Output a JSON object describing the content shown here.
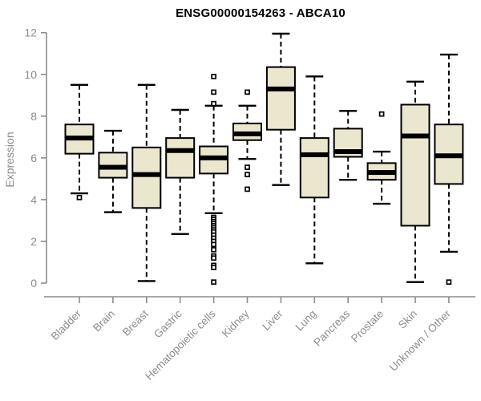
{
  "chart_data": {
    "type": "boxplot",
    "title": "ENSG00000154263 - ABCA10",
    "xlabel": "",
    "ylabel": "Expression",
    "ylim": [
      0,
      12
    ],
    "yticks": [
      0,
      2,
      4,
      6,
      8,
      10,
      12
    ],
    "grid": false,
    "legend": "none",
    "categories": [
      "Bladder",
      "Brain",
      "Breast",
      "Gastric",
      "Hematopoietic cells",
      "Kidney",
      "Liver",
      "Lung",
      "Pancreas",
      "Prostate",
      "Skin",
      "Unknown / Other"
    ],
    "boxes": [
      {
        "label": "Bladder",
        "whisker_low": 4.3,
        "q1": 6.2,
        "median": 6.95,
        "q3": 7.6,
        "whisker_high": 9.5,
        "outliers": [
          4.1
        ]
      },
      {
        "label": "Brain",
        "whisker_low": 3.4,
        "q1": 5.05,
        "median": 5.55,
        "q3": 6.25,
        "whisker_high": 7.3,
        "outliers": []
      },
      {
        "label": "Breast",
        "whisker_low": 0.1,
        "q1": 3.6,
        "median": 5.2,
        "q3": 6.5,
        "whisker_high": 9.5,
        "outliers": []
      },
      {
        "label": "Gastric",
        "whisker_low": 2.35,
        "q1": 5.05,
        "median": 6.35,
        "q3": 6.95,
        "whisker_high": 8.3,
        "outliers": []
      },
      {
        "label": "Hematopoietic cells",
        "whisker_low": 3.35,
        "q1": 5.25,
        "median": 6.0,
        "q3": 6.55,
        "whisker_high": 8.5,
        "outliers": [
          9.9,
          9.15,
          8.6,
          3.15,
          3.05,
          2.95,
          2.85,
          2.75,
          2.65,
          2.55,
          2.45,
          2.3,
          2.15,
          2.0,
          1.85,
          1.6,
          1.3,
          1.2,
          0.85,
          0.75,
          0.05
        ]
      },
      {
        "label": "Kidney",
        "whisker_low": 5.95,
        "q1": 6.85,
        "median": 7.15,
        "q3": 7.65,
        "whisker_high": 8.5,
        "outliers": [
          9.15,
          5.55,
          5.2,
          4.5
        ]
      },
      {
        "label": "Liver",
        "whisker_low": 4.7,
        "q1": 7.35,
        "median": 9.3,
        "q3": 10.35,
        "whisker_high": 11.95,
        "outliers": []
      },
      {
        "label": "Lung",
        "whisker_low": 0.95,
        "q1": 4.1,
        "median": 6.15,
        "q3": 6.95,
        "whisker_high": 9.9,
        "outliers": []
      },
      {
        "label": "Pancreas",
        "whisker_low": 4.95,
        "q1": 6.05,
        "median": 6.3,
        "q3": 7.4,
        "whisker_high": 8.25,
        "outliers": []
      },
      {
        "label": "Prostate",
        "whisker_low": 3.8,
        "q1": 4.95,
        "median": 5.3,
        "q3": 5.75,
        "whisker_high": 6.3,
        "outliers": [
          8.1
        ]
      },
      {
        "label": "Skin",
        "whisker_low": 0.05,
        "q1": 2.75,
        "median": 7.05,
        "q3": 8.55,
        "whisker_high": 9.65,
        "outliers": []
      },
      {
        "label": "Unknown / Other",
        "whisker_low": 1.5,
        "q1": 4.75,
        "median": 6.1,
        "q3": 7.6,
        "whisker_high": 10.95,
        "outliers": [
          0.05
        ]
      }
    ],
    "colors": {
      "box_fill": "#ebe6ce",
      "box_stroke": "#000000",
      "median": "#000000",
      "whisker": "#000000",
      "outlier_stroke": "#000000",
      "outlier_fill": "#ffffff",
      "axis": "#8c8c8c",
      "tick_label": "#8c8c8c",
      "title": "#000000"
    }
  }
}
